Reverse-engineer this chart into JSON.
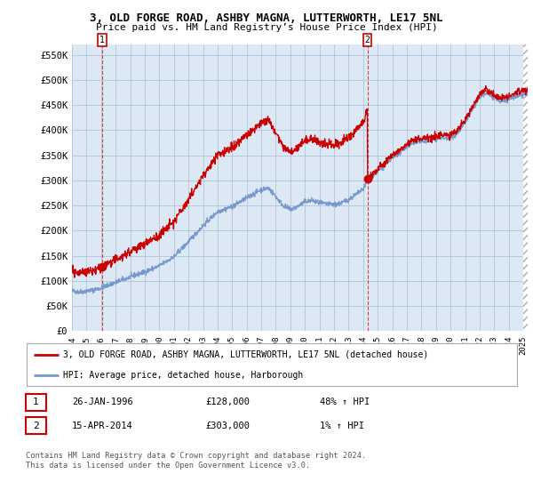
{
  "title_line1": "3, OLD FORGE ROAD, ASHBY MAGNA, LUTTERWORTH, LE17 5NL",
  "title_line2": "Price paid vs. HM Land Registry’s House Price Index (HPI)",
  "ylim": [
    0,
    570000
  ],
  "yticks": [
    0,
    50000,
    100000,
    150000,
    200000,
    250000,
    300000,
    350000,
    400000,
    450000,
    500000,
    550000
  ],
  "ytick_labels": [
    "£0",
    "£50K",
    "£100K",
    "£150K",
    "£200K",
    "£250K",
    "£300K",
    "£350K",
    "£400K",
    "£450K",
    "£500K",
    "£550K"
  ],
  "xlim_start": 1994.3,
  "xlim_end": 2025.3,
  "xtick_years": [
    1994,
    1995,
    1996,
    1997,
    1998,
    1999,
    2000,
    2001,
    2002,
    2003,
    2004,
    2005,
    2006,
    2007,
    2008,
    2009,
    2010,
    2011,
    2012,
    2013,
    2014,
    2015,
    2016,
    2017,
    2018,
    2019,
    2020,
    2021,
    2022,
    2023,
    2024,
    2025
  ],
  "sale1_x": 1996.07,
  "sale1_y": 128000,
  "sale1_label": "1",
  "sale2_x": 2014.29,
  "sale2_y": 303000,
  "sale2_label": "2",
  "legend_line1": "3, OLD FORGE ROAD, ASHBY MAGNA, LUTTERWORTH, LE17 5NL (detached house)",
  "legend_line2": "HPI: Average price, detached house, Harborough",
  "hpi_color": "#7799cc",
  "sale_color": "#cc0000",
  "background_color": "#ffffff",
  "chart_bg_color": "#dce9f5",
  "grid_color": "#b0c4d8",
  "marker_box_color": "#cc0000",
  "footnote": "Contains HM Land Registry data © Crown copyright and database right 2024.\nThis data is licensed under the Open Government Licence v3.0."
}
